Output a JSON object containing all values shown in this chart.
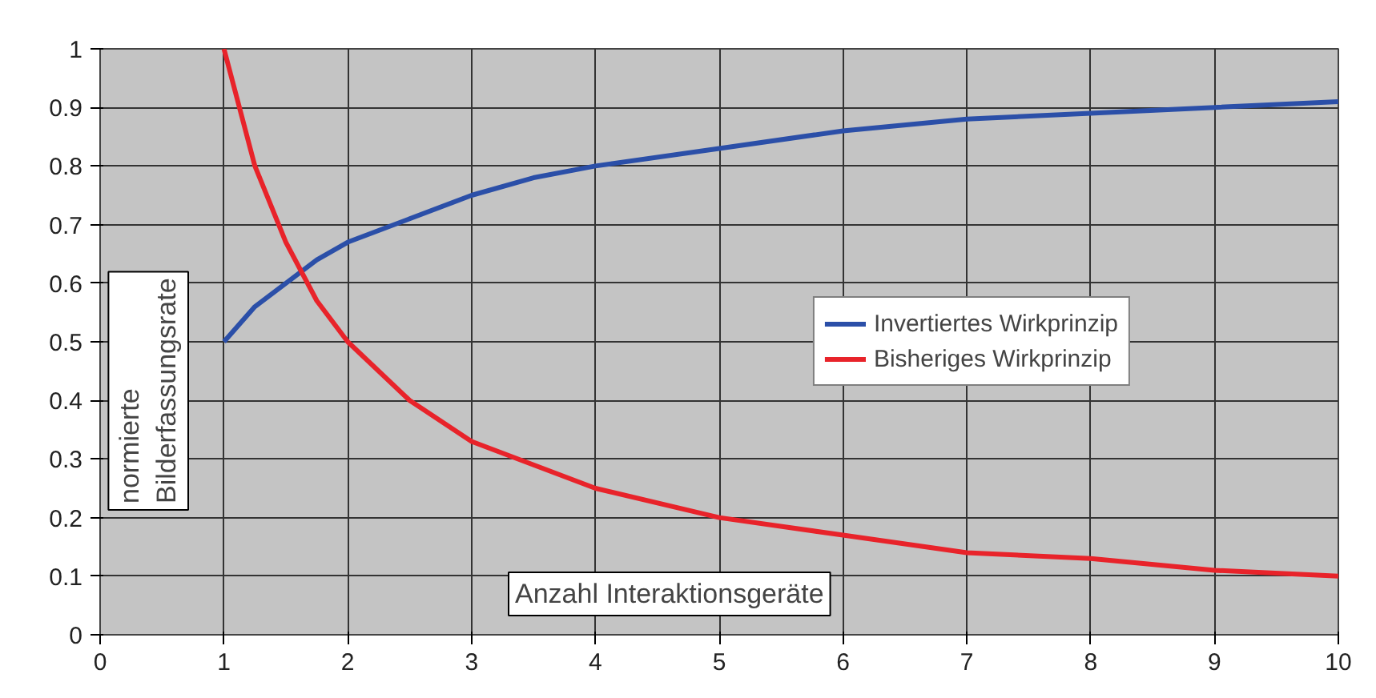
{
  "chart_data": {
    "type": "line",
    "xlabel": "Anzahl Interaktionsgeräte",
    "ylabel": "normierte\nBilderfassungsrate",
    "xlim": [
      0,
      10
    ],
    "ylim": [
      0,
      1
    ],
    "xticks": [
      0,
      1,
      2,
      3,
      4,
      5,
      6,
      7,
      8,
      9,
      10
    ],
    "yticks": [
      0,
      0.1,
      0.2,
      0.3,
      0.4,
      0.5,
      0.6,
      0.7,
      0.8,
      0.9,
      1
    ],
    "grid": true,
    "legend": "right",
    "marker": "none",
    "line_style": "solid",
    "series": [
      {
        "name": "Invertiertes Wirkprinzip",
        "color": "#2b4fa8",
        "x": [
          1,
          1.25,
          1.5,
          1.75,
          2,
          2.5,
          3,
          3.5,
          4,
          5,
          6,
          7,
          8,
          9,
          10
        ],
        "values": [
          0.5,
          0.56,
          0.6,
          0.64,
          0.67,
          0.71,
          0.75,
          0.78,
          0.8,
          0.83,
          0.86,
          0.88,
          0.89,
          0.9,
          0.91
        ]
      },
      {
        "name": "Bisheriges Wirkprinzip",
        "color": "#e8232a",
        "x": [
          1,
          1.25,
          1.5,
          1.75,
          2,
          2.5,
          3,
          3.5,
          4,
          5,
          6,
          7,
          8,
          9,
          10
        ],
        "values": [
          1,
          0.8,
          0.67,
          0.57,
          0.5,
          0.4,
          0.33,
          0.29,
          0.25,
          0.2,
          0.17,
          0.14,
          0.13,
          0.11,
          0.1
        ]
      }
    ]
  }
}
